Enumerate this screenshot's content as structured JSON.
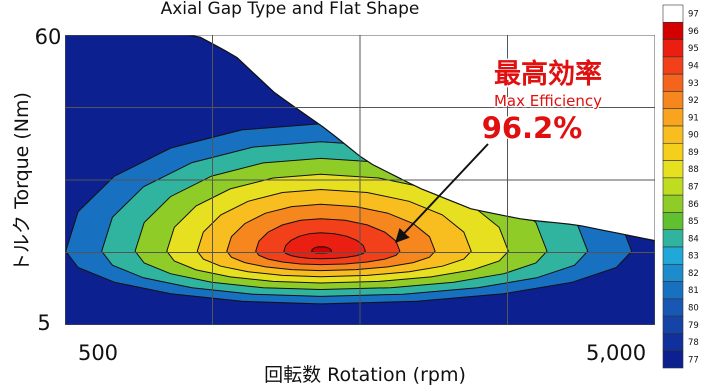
{
  "chart_data": {
    "type": "heatmap",
    "subtype": "efficiency-contour-map",
    "title": "Axial Gap Type and Flat Shape",
    "xlabel": "回転数 Rotation (rpm)",
    "ylabel": "トルク Torque (Nm)",
    "x_tick_labels": [
      "500",
      "5,000"
    ],
    "y_tick_labels": [
      "60",
      "5"
    ],
    "xlim": [
      500,
      5000
    ],
    "ylim": [
      5,
      60
    ],
    "grid": true,
    "annotation": {
      "heading": "最高効率",
      "subheading": "Max Efficiency",
      "value": "96.2%",
      "arrow_to_peak": true
    },
    "peak": {
      "rpm": 2450,
      "torque_nm": 19,
      "efficiency_pct": 96.2
    },
    "envelope": {
      "x": [
        500,
        1000,
        1500,
        1800,
        2100,
        2500,
        2800,
        3200,
        3600,
        4000,
        4400,
        4800,
        5000
      ],
      "max_torque": [
        60,
        60,
        60,
        56,
        49,
        42,
        36,
        31,
        27,
        25,
        24,
        22,
        21
      ]
    },
    "contour_levels": [
      77,
      81,
      84,
      86,
      88,
      90,
      92,
      94,
      95,
      96
    ],
    "colorbar": {
      "labels": [
        "97",
        "96",
        "95",
        "94",
        "93",
        "92",
        "91",
        "90",
        "89",
        "88",
        "87",
        "86",
        "85",
        "84",
        "83",
        "82",
        "81",
        "80",
        "79",
        "78",
        "77"
      ],
      "colors": [
        "#ffffff",
        "#d40000",
        "#ea1f12",
        "#f2401a",
        "#f4641c",
        "#f6861e",
        "#f8a41e",
        "#f8be20",
        "#f4d01c",
        "#e6e020",
        "#c0dc20",
        "#90cc28",
        "#60c030",
        "#30b4a0",
        "#20a8d8",
        "#1c8ccc",
        "#1870c0",
        "#1858b4",
        "#1444a8",
        "#10309c",
        "#0c2090"
      ]
    }
  }
}
